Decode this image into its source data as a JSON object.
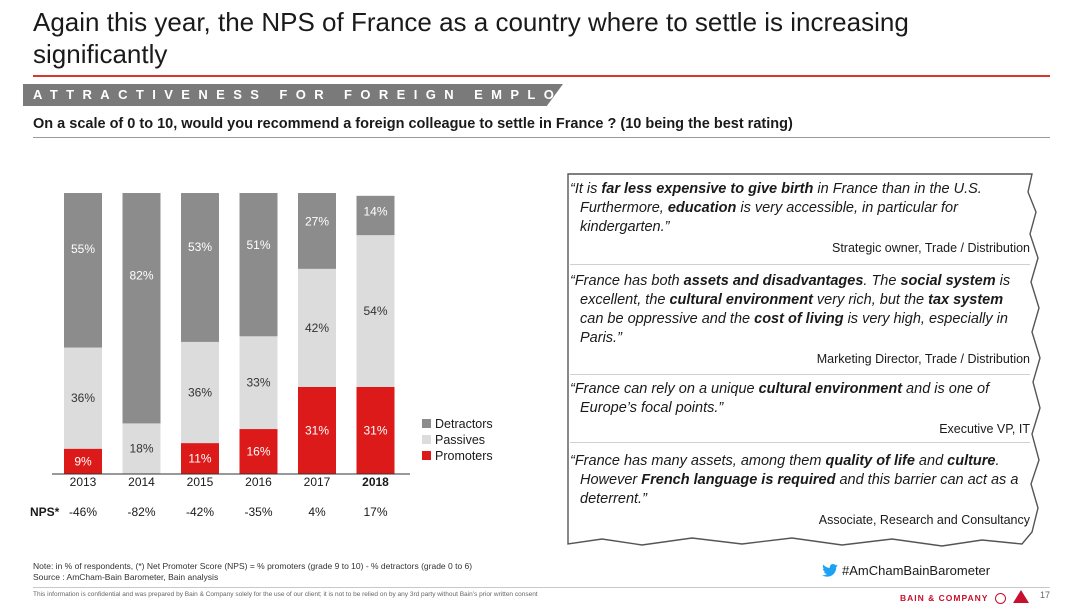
{
  "header": {
    "title": "Again this year, the NPS of France as a country where to settle is increasing significantly",
    "banner": "ATTRACTIVENESS FOR FOREIGN EMPLOYEES",
    "question": "On a scale of 0 to 10, would you recommend a foreign colleague to settle in France ? (10 being the best rating)"
  },
  "colors": {
    "detractors": "#8c8c8c",
    "passives": "#dcdcdc",
    "promoters": "#dd1a1a",
    "accent": "#d9372b"
  },
  "chart_data": {
    "type": "bar",
    "stacked": true,
    "normalized_to": 100,
    "categories": [
      "2013",
      "2014",
      "2015",
      "2016",
      "2017",
      "2018"
    ],
    "highlight_category": "2018",
    "series": [
      {
        "name": "Promoters",
        "values": [
          9,
          0,
          11,
          16,
          31,
          31
        ],
        "labels": [
          "9%",
          "",
          "11%",
          "16%",
          "31%",
          "31%"
        ]
      },
      {
        "name": "Passives",
        "values": [
          36,
          18,
          36,
          33,
          42,
          54
        ],
        "labels": [
          "36%",
          "18%",
          "36%",
          "33%",
          "42%",
          "54%"
        ]
      },
      {
        "name": "Detractors",
        "values": [
          55,
          82,
          53,
          51,
          27,
          14
        ],
        "labels": [
          "55%",
          "82%",
          "53%",
          "51%",
          "27%",
          "14%"
        ]
      }
    ],
    "legend_order": [
      "Detractors",
      "Passives",
      "Promoters"
    ],
    "legend_position": "right",
    "nps_label": "NPS*",
    "nps_values": [
      "-46%",
      "-82%",
      "-42%",
      "-35%",
      "4%",
      "17%"
    ]
  },
  "quotes": [
    {
      "parts": [
        {
          "t": "“It is ",
          "b": false
        },
        {
          "t": "far less expensive to give birth",
          "b": true
        },
        {
          "t": " in France than in the U.S. Furthermore, ",
          "b": false
        },
        {
          "t": "education",
          "b": true
        },
        {
          "t": " is very accessible, in particular for kindergarten.”",
          "b": false
        }
      ],
      "source": "Strategic owner, Trade / Distribution"
    },
    {
      "parts": [
        {
          "t": "“France has both ",
          "b": false
        },
        {
          "t": "assets and disadvantages",
          "b": true
        },
        {
          "t": ". The ",
          "b": false
        },
        {
          "t": "social system",
          "b": true
        },
        {
          "t": " is excellent, the ",
          "b": false
        },
        {
          "t": "cultural environment",
          "b": true
        },
        {
          "t": " very rich, but the ",
          "b": false
        },
        {
          "t": "tax system",
          "b": true
        },
        {
          "t": " can be oppressive and the ",
          "b": false
        },
        {
          "t": "cost of living",
          "b": true
        },
        {
          "t": " is very high, especially in Paris.”",
          "b": false
        }
      ],
      "source": "Marketing Director, Trade / Distribution"
    },
    {
      "parts": [
        {
          "t": "“France can rely on a unique ",
          "b": false
        },
        {
          "t": "cultural environment",
          "b": true
        },
        {
          "t": " and is one of Europe’s focal points.”",
          "b": false
        }
      ],
      "source": "Executive VP, IT"
    },
    {
      "parts": [
        {
          "t": "“France has many assets, among them ",
          "b": false
        },
        {
          "t": "quality of life",
          "b": true
        },
        {
          "t": " and ",
          "b": false
        },
        {
          "t": "culture",
          "b": true
        },
        {
          "t": ". However ",
          "b": false
        },
        {
          "t": "French language is required",
          "b": true
        },
        {
          "t": " and this barrier can act as a deterrent.”",
          "b": false
        }
      ],
      "source": "Associate, Research and Consultancy"
    }
  ],
  "footer": {
    "note_line1": "Note: in % of respondents, (*) Net Promoter Score (NPS) = % promoters (grade 9 to 10) - % detractors (grade 0 to 6)",
    "note_line2": "Source : AmCham-Bain Barometer, Bain analysis",
    "hashtag": "#AmChamBainBarometer",
    "hashtag_icon": "twitter-bird-icon",
    "confidential": "This information is confidential and was prepared by Bain & Company solely for the use of our client; it is not to be relied on by any 3rd party without Bain’s prior written consent",
    "brand": "BAIN & COMPANY",
    "page_number": "17"
  }
}
